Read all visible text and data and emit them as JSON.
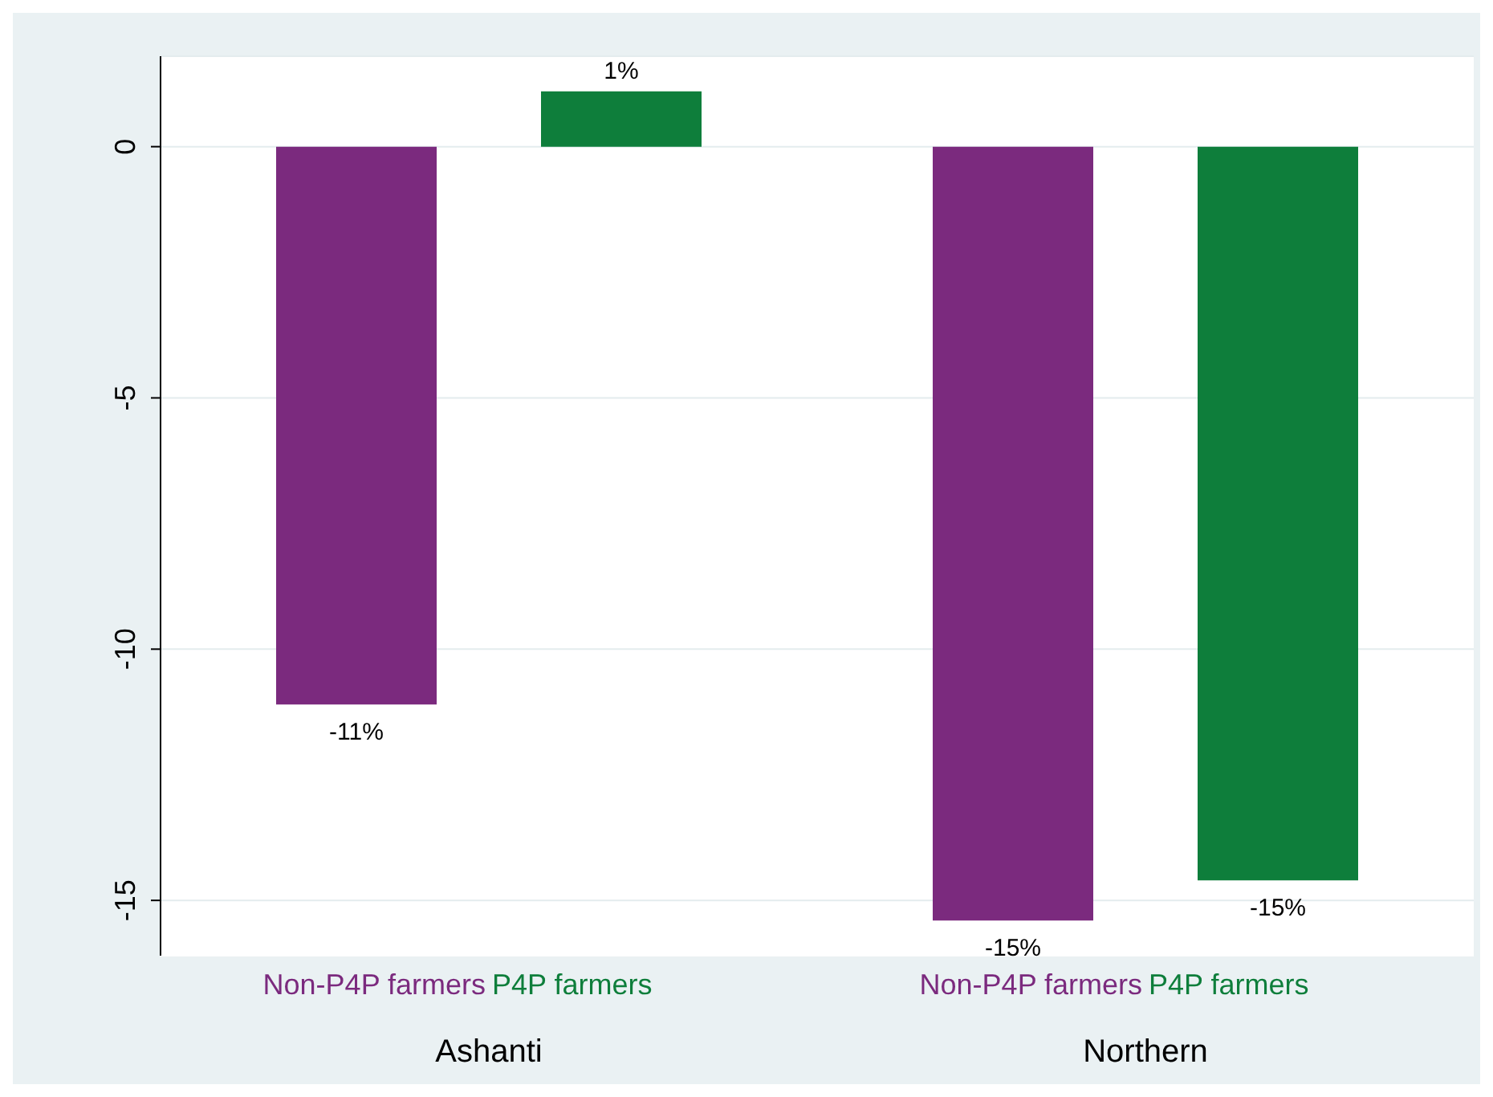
{
  "chart_data": {
    "type": "bar",
    "categories": [
      "Ashanti",
      "Northern"
    ],
    "series": [
      {
        "name": "Non-P4P farmers",
        "color": "#7b2a7e",
        "values": [
          -11.1,
          -15.4
        ],
        "value_labels": [
          "-11%",
          "-15%"
        ]
      },
      {
        "name": "P4P farmers",
        "color": "#0e7e3b",
        "values": [
          1.1,
          -14.6
        ],
        "value_labels": [
          "1%",
          "-15%"
        ]
      }
    ],
    "ylim": [
      -16.1,
      1.8
    ],
    "yticks": [
      0,
      -5,
      -10,
      -15
    ],
    "grid": "y"
  }
}
